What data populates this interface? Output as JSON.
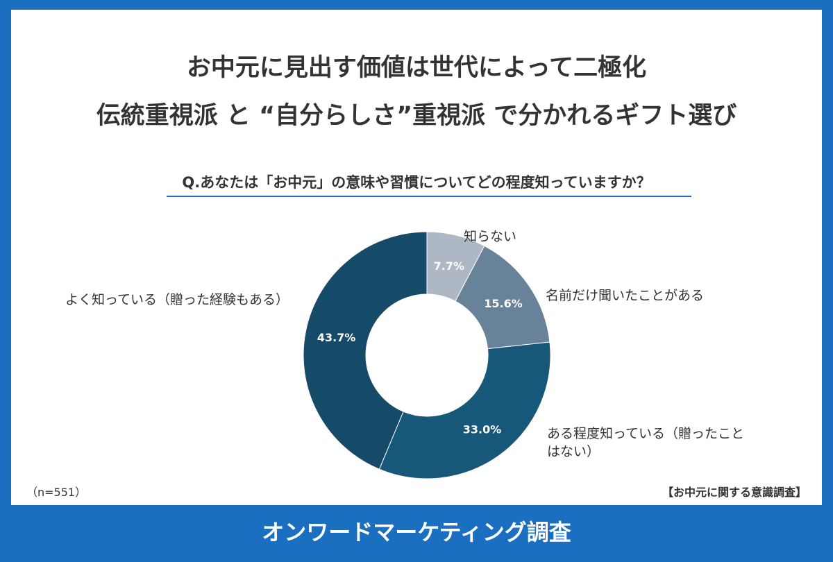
{
  "title_line1": "お中元に見出す価値は世代によって二極化",
  "title_line2": "伝統重視派 と “自分らしさ”重視派 で分かれるギフト選び",
  "question": "Q.あなたは「お中元」の意味や習慣についてどの程度知っていますか？",
  "sample_note": "（n=551）",
  "source_note": "【お中元に関する意識調査】",
  "footer": "オンワードマーケティング調査",
  "chart_data": {
    "type": "pie",
    "donut": true,
    "start": "12 o'clock, clockwise",
    "slices": [
      {
        "label": "知らない",
        "value": 7.7,
        "value_label": "7.7%",
        "color": "#adb8c4"
      },
      {
        "label": "名前だけ聞いたことがある",
        "value": 15.6,
        "value_label": "15.6%",
        "color": "#68829a"
      },
      {
        "label": "ある程度知っている（贈ったことはない）",
        "label_lines": [
          "ある程度知っている（贈ったこと",
          "はない）"
        ],
        "value": 33.0,
        "value_label": "33.0%",
        "color": "#17587a"
      },
      {
        "label": "よく知っている（贈った経験もある）",
        "value": 43.7,
        "value_label": "43.7%",
        "color": "#154a69"
      }
    ]
  }
}
